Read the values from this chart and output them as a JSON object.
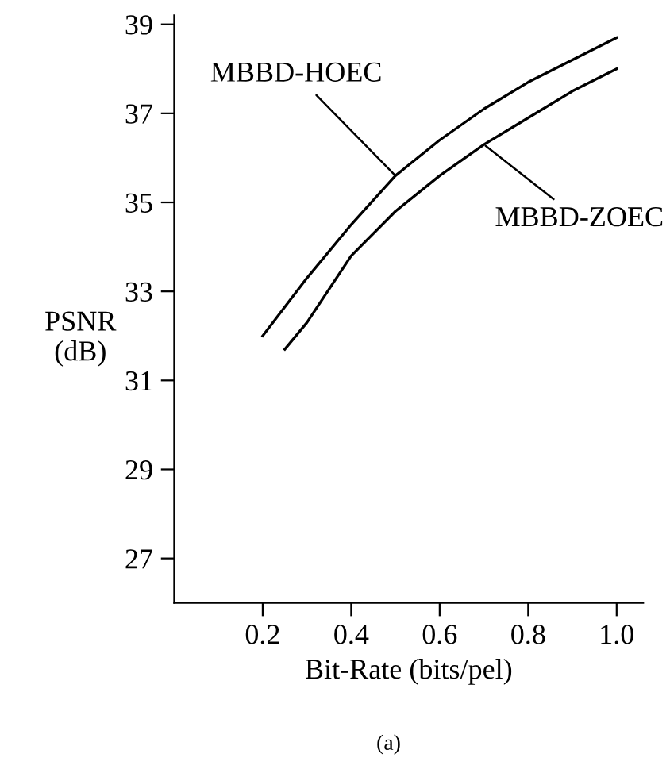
{
  "chart_data": {
    "type": "line",
    "xlabel": "Bit-Rate (bits/pel)",
    "ylabel": "PSNR\n(dB)",
    "xlim": [
      0,
      1.06
    ],
    "ylim": [
      26,
      39.2
    ],
    "xticks": [
      0.2,
      0.4,
      0.6,
      0.8,
      {
        "value": 1.0,
        "label": "1.0"
      }
    ],
    "yticks": [
      27,
      29,
      31,
      33,
      35,
      37,
      39
    ],
    "series": [
      {
        "name": "MBBD-HOEC",
        "color": "#000000",
        "x": [
          0.2,
          0.3,
          0.4,
          0.5,
          0.6,
          0.7,
          0.8,
          0.9,
          1.0
        ],
        "values": [
          32.0,
          33.3,
          34.5,
          35.6,
          36.4,
          37.1,
          37.7,
          38.2,
          38.7
        ]
      },
      {
        "name": "MBBD-ZOEC",
        "color": "#000000",
        "x": [
          0.25,
          0.3,
          0.4,
          0.5,
          0.6,
          0.7,
          0.8,
          0.9,
          1.0
        ],
        "values": [
          31.7,
          32.3,
          33.8,
          34.8,
          35.6,
          36.3,
          36.9,
          37.5,
          38.0
        ]
      }
    ],
    "annotations": [
      "(a)"
    ],
    "grid": false,
    "marker": "none",
    "line_style": "solid"
  }
}
